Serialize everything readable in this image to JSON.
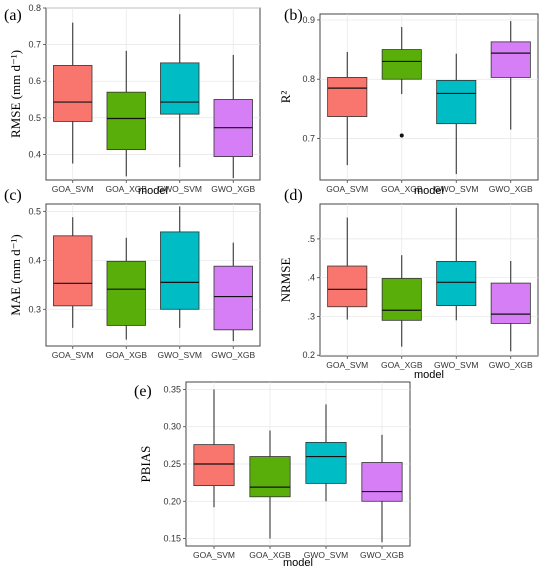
{
  "colors": {
    "GOA_SVM": "#F8766D",
    "GOA_XGB": "#5AAE0A",
    "GWO_SVM": "#00BCC4",
    "GWO_XGB": "#D67EF5"
  },
  "chart_data": [
    {
      "id": "a",
      "panel_label": "(a)",
      "type": "box",
      "ylabel": "RMSE (mm d⁻¹)",
      "xlabel": "model",
      "ylim": [
        0.33,
        0.8
      ],
      "yticks": [
        0.4,
        0.5,
        0.6,
        0.7,
        0.8
      ],
      "ytick_labels": [
        "0.4",
        "0.5",
        "0.6",
        "0.7",
        "0.8"
      ],
      "categories": [
        "GOA_SVM",
        "GOA_XGB",
        "GWO_SVM",
        "GWO_XGB"
      ],
      "boxes": [
        {
          "min": 0.375,
          "q1": 0.49,
          "median": 0.543,
          "q3": 0.643,
          "max": 0.76,
          "outliers": []
        },
        {
          "min": 0.34,
          "q1": 0.413,
          "median": 0.498,
          "q3": 0.57,
          "max": 0.683,
          "outliers": []
        },
        {
          "min": 0.365,
          "q1": 0.51,
          "median": 0.543,
          "q3": 0.65,
          "max": 0.783,
          "outliers": []
        },
        {
          "min": 0.335,
          "q1": 0.394,
          "median": 0.473,
          "q3": 0.55,
          "max": 0.672,
          "outliers": []
        }
      ]
    },
    {
      "id": "b",
      "panel_label": "(b)",
      "type": "box",
      "ylabel": "R²",
      "xlabel": "model",
      "ylim": [
        0.63,
        0.91
      ],
      "yticks": [
        0.7,
        0.8,
        0.9
      ],
      "ytick_labels": [
        "0.7",
        "0.8",
        "0.9"
      ],
      "categories": [
        "GOA_SVM",
        "GOA_XGB",
        "GWO_SVM",
        "GWO_XGB"
      ],
      "boxes": [
        {
          "min": 0.655,
          "q1": 0.737,
          "median": 0.785,
          "q3": 0.803,
          "max": 0.846,
          "outliers": []
        },
        {
          "min": 0.775,
          "q1": 0.8,
          "median": 0.83,
          "q3": 0.85,
          "max": 0.888,
          "outliers": [
            0.705
          ]
        },
        {
          "min": 0.64,
          "q1": 0.725,
          "median": 0.776,
          "q3": 0.798,
          "max": 0.843,
          "outliers": []
        },
        {
          "min": 0.715,
          "q1": 0.803,
          "median": 0.844,
          "q3": 0.863,
          "max": 0.898,
          "outliers": []
        }
      ]
    },
    {
      "id": "c",
      "panel_label": "(c)",
      "type": "box",
      "ylabel": "MAE (mm d⁻¹)",
      "xlabel": "",
      "ylim": [
        0.225,
        0.515
      ],
      "yticks": [
        0.3,
        0.4,
        0.5
      ],
      "ytick_labels": [
        "0.3",
        "0.4",
        "0.5"
      ],
      "categories": [
        "GOA_SVM",
        "GOA_XGB",
        "GWO_SVM",
        "GWO_XGB"
      ],
      "boxes": [
        {
          "min": 0.262,
          "q1": 0.307,
          "median": 0.353,
          "q3": 0.45,
          "max": 0.488,
          "outliers": []
        },
        {
          "min": 0.238,
          "q1": 0.267,
          "median": 0.341,
          "q3": 0.398,
          "max": 0.446,
          "outliers": []
        },
        {
          "min": 0.262,
          "q1": 0.3,
          "median": 0.355,
          "q3": 0.458,
          "max": 0.51,
          "outliers": []
        },
        {
          "min": 0.235,
          "q1": 0.258,
          "median": 0.326,
          "q3": 0.388,
          "max": 0.436,
          "outliers": []
        }
      ]
    },
    {
      "id": "d",
      "panel_label": "(d)",
      "type": "box",
      "ylabel": "NRMSE",
      "xlabel": "model",
      "ylim": [
        0.198,
        0.59
      ],
      "yticks": [
        0.2,
        0.3,
        0.4,
        0.5
      ],
      "ytick_labels": [
        "0.2",
        ".3",
        ".4",
        ".5"
      ],
      "categories": [
        "GOA_SVM",
        "GOA_XGB",
        "GWO_SVM",
        "GWO_XGB"
      ],
      "boxes": [
        {
          "min": 0.292,
          "q1": 0.325,
          "median": 0.37,
          "q3": 0.43,
          "max": 0.555,
          "outliers": []
        },
        {
          "min": 0.222,
          "q1": 0.29,
          "median": 0.316,
          "q3": 0.398,
          "max": 0.458,
          "outliers": []
        },
        {
          "min": 0.29,
          "q1": 0.328,
          "median": 0.388,
          "q3": 0.442,
          "max": 0.58,
          "outliers": []
        },
        {
          "min": 0.21,
          "q1": 0.282,
          "median": 0.306,
          "q3": 0.386,
          "max": 0.443,
          "outliers": []
        }
      ]
    },
    {
      "id": "e",
      "panel_label": "(e)",
      "type": "box",
      "ylabel": "PBIAS",
      "xlabel": "model",
      "ylim": [
        0.14,
        0.36
      ],
      "yticks": [
        0.15,
        0.2,
        0.25,
        0.3,
        0.35
      ],
      "ytick_labels": [
        "0.15",
        "0.20",
        "0.25",
        "0.30",
        "0.35"
      ],
      "categories": [
        "GOA_SVM",
        "GOA_XGB",
        "GWO_SVM",
        "GWO_XGB"
      ],
      "boxes": [
        {
          "min": 0.192,
          "q1": 0.221,
          "median": 0.25,
          "q3": 0.276,
          "max": 0.35,
          "outliers": []
        },
        {
          "min": 0.15,
          "q1": 0.206,
          "median": 0.219,
          "q3": 0.26,
          "max": 0.295,
          "outliers": []
        },
        {
          "min": 0.2,
          "q1": 0.224,
          "median": 0.26,
          "q3": 0.279,
          "max": 0.33,
          "outliers": []
        },
        {
          "min": 0.145,
          "q1": 0.2,
          "median": 0.213,
          "q3": 0.252,
          "max": 0.289,
          "outliers": []
        }
      ]
    }
  ]
}
